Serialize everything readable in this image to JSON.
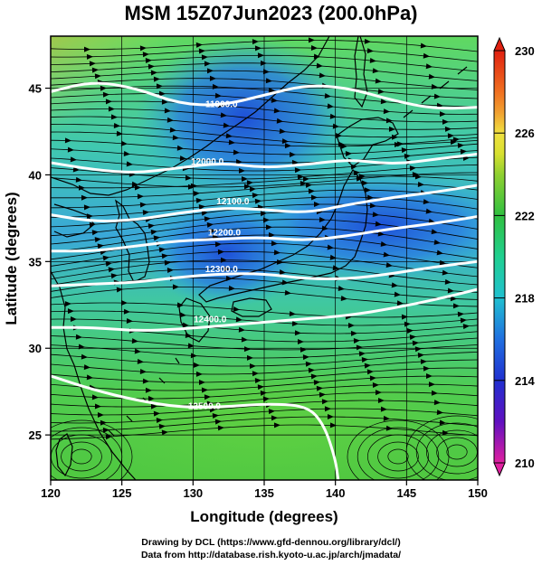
{
  "title": "MSM 15Z07Jun2023 (200.0hPa)",
  "credits": {
    "line1": "Drawing by DCL (https://www.gfd-dennou.org/library/dcl/)",
    "line2": "Data from http://database.rish.kyoto-u.ac.jp/arch/jmadata/"
  },
  "x_axis": {
    "label": "Longitude (degrees)",
    "range": [
      120,
      150
    ],
    "ticks": [
      120,
      125,
      130,
      135,
      140,
      145,
      150
    ]
  },
  "y_axis": {
    "label": "Latitude  (degrees)",
    "range": [
      22.4,
      48
    ],
    "ticks": [
      25,
      30,
      35,
      40,
      45
    ]
  },
  "colorbar": {
    "min": 210,
    "max": 230,
    "ticks": [
      210,
      214,
      218,
      222,
      226,
      230
    ],
    "tick_labels": [
      "210",
      "214",
      "218",
      "222",
      "226",
      "230"
    ],
    "colors": {
      "210": "#e020a0",
      "212": "#6010c0",
      "214": "#2030d0",
      "216": "#2070e0",
      "218": "#20c0d0",
      "220": "#20d090",
      "222": "#30c040",
      "224": "#90d030",
      "225": "#d8e030",
      "226": "#f0e040",
      "227": "#f0a030",
      "228": "#f07020",
      "230": "#e02010"
    }
  },
  "contours": [
    {
      "label": "11900.0",
      "label_lon": 132.0,
      "label_lat": 43.9,
      "points": [
        [
          120,
          44.8
        ],
        [
          123,
          45.4
        ],
        [
          126,
          45.0
        ],
        [
          129,
          44.1
        ],
        [
          132,
          44.0
        ],
        [
          135,
          44.6
        ],
        [
          138,
          45.2
        ],
        [
          141,
          45.0
        ],
        [
          144,
          44.3
        ],
        [
          147,
          43.8
        ],
        [
          150,
          43.9
        ]
      ]
    },
    {
      "label": "12000.0",
      "label_lon": 131.0,
      "label_lat": 40.6,
      "points": [
        [
          120,
          40.7
        ],
        [
          123,
          40.3
        ],
        [
          126,
          40.1
        ],
        [
          129,
          40.4
        ],
        [
          132,
          40.7
        ],
        [
          135,
          40.4
        ],
        [
          138,
          40.6
        ],
        [
          141,
          40.9
        ],
        [
          144,
          40.6
        ],
        [
          147,
          40.9
        ],
        [
          150,
          41.2
        ]
      ]
    },
    {
      "label": "12100.0",
      "label_lon": 132.8,
      "label_lat": 38.3,
      "points": [
        [
          120,
          37.7
        ],
        [
          123,
          37.3
        ],
        [
          126,
          37.4
        ],
        [
          129,
          37.8
        ],
        [
          132,
          38.1
        ],
        [
          135,
          38.0
        ],
        [
          138,
          37.8
        ],
        [
          141,
          38.3
        ],
        [
          144,
          38.7
        ],
        [
          147,
          39.0
        ],
        [
          150,
          39.4
        ]
      ]
    },
    {
      "label": "12200.0",
      "label_lon": 132.2,
      "label_lat": 36.5,
      "points": [
        [
          120,
          35.6
        ],
        [
          123,
          35.6
        ],
        [
          126,
          35.9
        ],
        [
          129,
          36.2
        ],
        [
          132,
          36.3
        ],
        [
          135,
          36.4
        ],
        [
          138,
          36.2
        ],
        [
          141,
          36.5
        ],
        [
          144,
          36.9
        ],
        [
          147,
          37.2
        ],
        [
          150,
          37.6
        ]
      ]
    },
    {
      "label": "12300.0",
      "label_lon": 132.0,
      "label_lat": 34.4,
      "points": [
        [
          120,
          33.6
        ],
        [
          123,
          33.7
        ],
        [
          126,
          33.8
        ],
        [
          129,
          34.1
        ],
        [
          132,
          34.3
        ],
        [
          135,
          34.3
        ],
        [
          138,
          34.0
        ],
        [
          141,
          34.0
        ],
        [
          144,
          34.3
        ],
        [
          147,
          34.7
        ],
        [
          150,
          35.0
        ]
      ]
    },
    {
      "label": "12400.0",
      "label_lon": 131.2,
      "label_lat": 31.5,
      "points": [
        [
          120,
          31.2
        ],
        [
          123,
          31.2
        ],
        [
          126,
          31.0
        ],
        [
          129,
          31.1
        ],
        [
          132,
          31.3
        ],
        [
          135,
          31.5
        ],
        [
          138,
          31.7
        ],
        [
          141,
          31.9
        ],
        [
          144,
          32.3
        ],
        [
          147,
          32.8
        ],
        [
          150,
          33.4
        ]
      ]
    },
    {
      "label": "12500.0",
      "label_lon": 130.8,
      "label_lat": 26.5,
      "points": [
        [
          120,
          28.4
        ],
        [
          123,
          27.6
        ],
        [
          126,
          27.0
        ],
        [
          129,
          26.6
        ],
        [
          132,
          26.6
        ],
        [
          135,
          26.8
        ],
        [
          138,
          26.7
        ],
        [
          139.2,
          25.6
        ],
        [
          140,
          23.6
        ],
        [
          140.2,
          22.4
        ]
      ]
    }
  ]
}
